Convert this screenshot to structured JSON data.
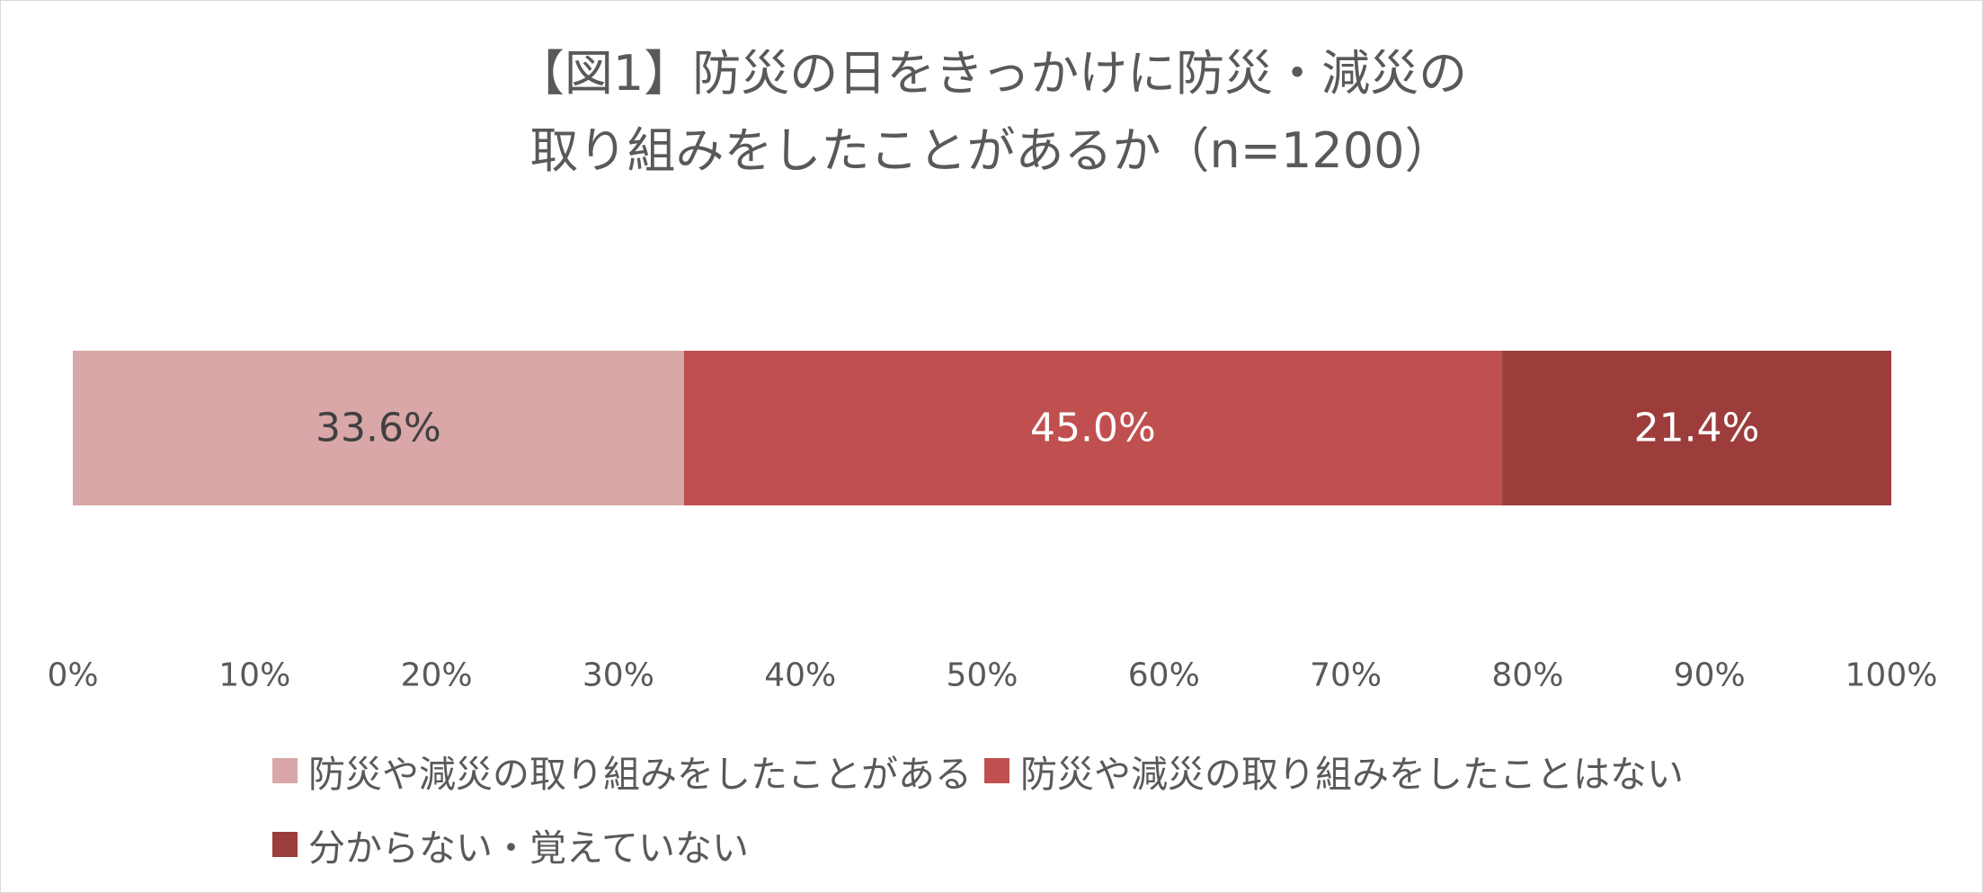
{
  "chart_data": {
    "type": "bar",
    "orientation": "horizontal",
    "stacked": "percent",
    "title_lines": [
      "【図1】防災の日をきっかけに防災・減災の",
      "取り組みをしたことがあるか（n=1200）"
    ],
    "series": [
      {
        "name": "防災や減災の取り組みをしたことがある",
        "values": [
          33.6
        ],
        "label": "33.6%",
        "color": "#D9A7A7",
        "label_color": "#404040"
      },
      {
        "name": "防災や減災の取り組みをしたことはない",
        "values": [
          45.0
        ],
        "label": "45.0%",
        "color": "#C0504F",
        "label_color": "#FFFFFF"
      },
      {
        "name": "分からない・覚えていない",
        "values": [
          21.4
        ],
        "label": "21.4%",
        "color": "#9C3D3C",
        "label_color": "#FFFFFF"
      }
    ],
    "x_ticks": [
      "0%",
      "10%",
      "20%",
      "30%",
      "40%",
      "50%",
      "60%",
      "70%",
      "80%",
      "90%",
      "100%"
    ],
    "xlim": [
      0,
      100
    ],
    "grid": false,
    "legend_position": "bottom"
  }
}
